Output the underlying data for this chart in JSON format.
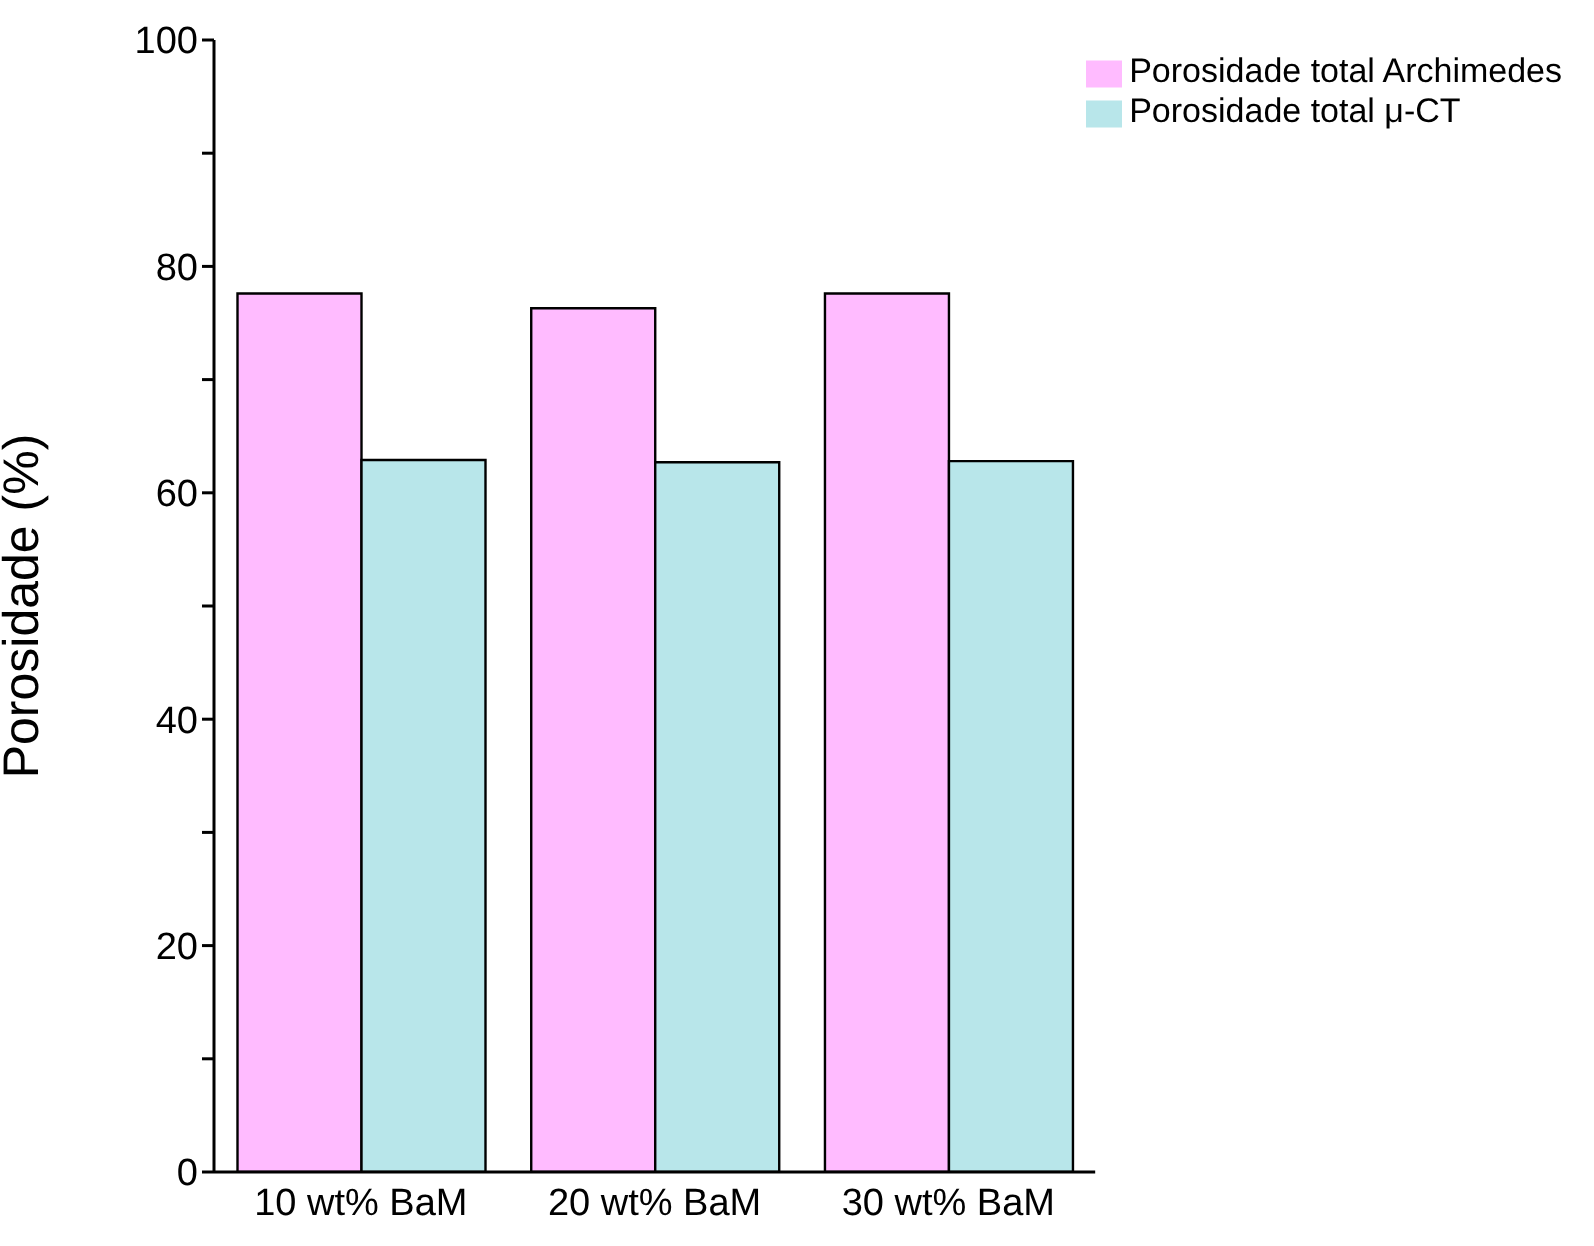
{
  "chart_data": {
    "type": "bar",
    "ylabel": "Porosidade (%)",
    "categories": [
      "10 wt% BaM",
      "20 wt% BaM",
      "30 wt% BaM"
    ],
    "series": [
      {
        "name": "Porosidade total Archimedes",
        "color": "#ffbbff",
        "values": [
          77.6,
          76.3,
          77.6
        ]
      },
      {
        "name": "Porosidade total μ-CT",
        "color": "#b8e6ea",
        "values": [
          62.9,
          62.7,
          62.8
        ]
      }
    ],
    "ylim": [
      0,
      100
    ],
    "yticks": [
      0,
      {
        "value": 10,
        "label": null
      },
      20,
      {
        "value": 30,
        "label": null
      },
      40,
      {
        "value": 50,
        "label": null
      },
      60,
      {
        "value": 70,
        "label": null
      },
      80,
      {
        "value": 90,
        "label": null
      },
      100
    ],
    "legend": "top right",
    "grid": false
  }
}
